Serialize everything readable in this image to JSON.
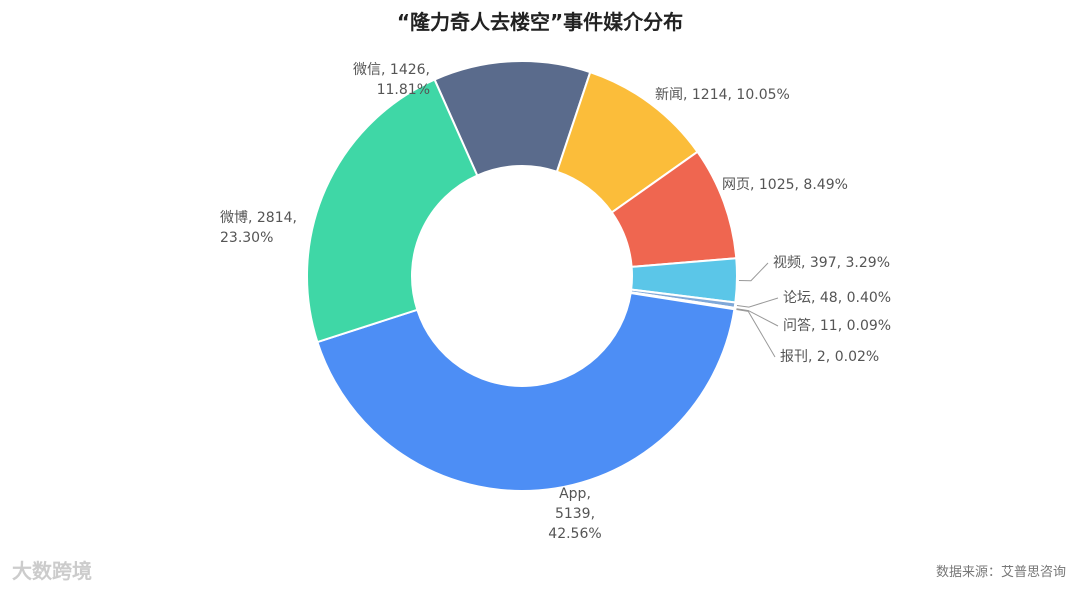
{
  "chart_data": {
    "type": "donut",
    "title": "“隆力奇人去楼空”事件媒介分布",
    "values": [
      1426,
      1214,
      1025,
      397,
      48,
      11,
      2,
      5139,
      2814
    ],
    "value_labels": [
      "微信, 1426, 11.81%",
      "新闻, 1214, 10.05%",
      "网页, 1025, 8.49%",
      "视频, 397, 3.29%",
      "论坛, 48, 0.40%",
      "问答, 11, 0.09%",
      "报刊, 2, 0.02%",
      "App, 5139, 42.56%",
      "微博, 2814, 23.30%"
    ],
    "colors": [
      "#5a6b8c",
      "#fbbd3a",
      "#ef6650",
      "#5bc6e8",
      "#7fa8d8",
      "#1b4f92",
      "#2e6bb5",
      "#4d8ef5",
      "#3fd7a6"
    ],
    "source": "数据来源：艾普思咨询",
    "brand": "大数跨境"
  }
}
